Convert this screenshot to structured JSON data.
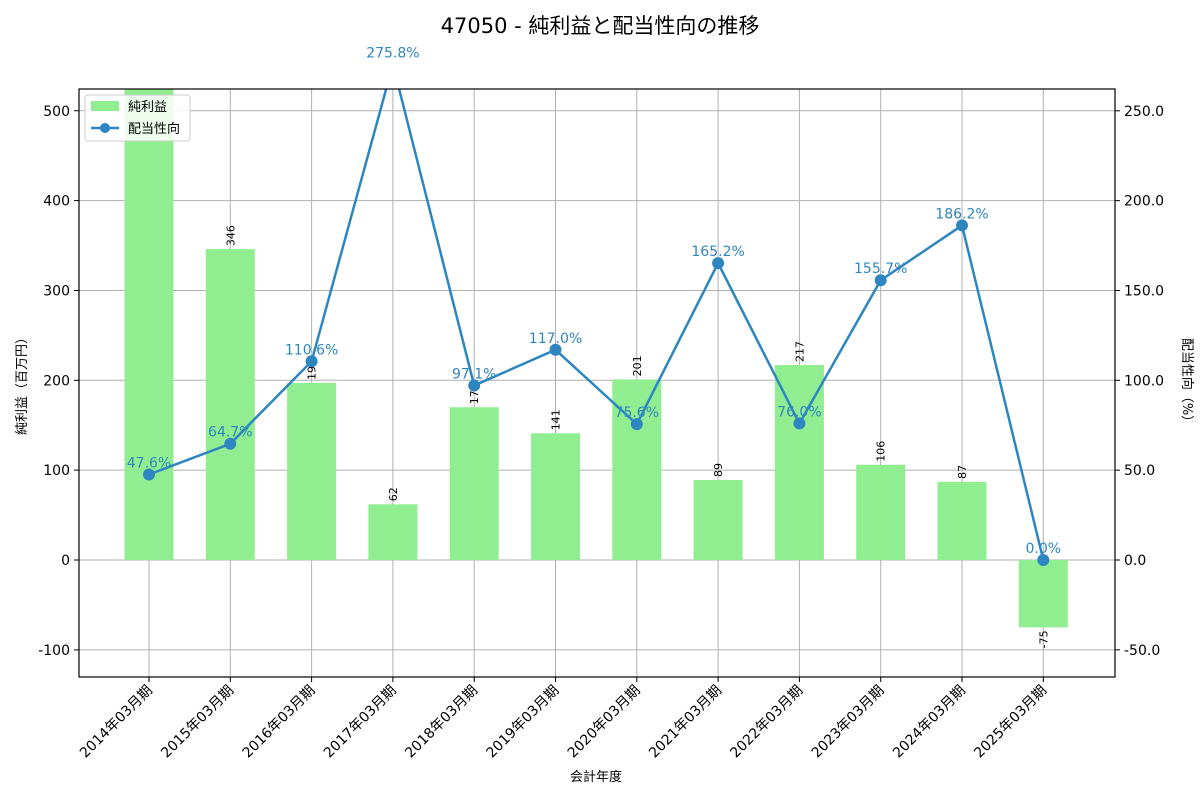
{
  "chart_data": {
    "type": "bar+line",
    "title": "47050 - 純利益と配当性向の推移",
    "xlabel": "会計年度",
    "ylabel_left": "純利益（百万円）",
    "ylabel_right": "配当性向（%）",
    "categories": [
      "2014年03月期",
      "2015年03月期",
      "2016年03月期",
      "2017年03月期",
      "2018年03月期",
      "2019年03月期",
      "2020年03月期",
      "2021年03月期",
      "2022年03月期",
      "2023年03月期",
      "2024年03月期",
      "2025年03月期"
    ],
    "series": [
      {
        "name": "純利益",
        "type": "bar",
        "axis": "left",
        "color": "#90ee90",
        "values": [
          560,
          346,
          197,
          62,
          170,
          141,
          201,
          89,
          217,
          106,
          87,
          -75
        ],
        "labels": [
          "",
          "346",
          "197",
          "62",
          "170",
          "141",
          "201",
          "89",
          "217",
          "106",
          "87",
          "-75"
        ]
      },
      {
        "name": "配当性向",
        "type": "line",
        "axis": "right",
        "color": "#2e86c1",
        "values": [
          47.6,
          64.7,
          110.6,
          275.8,
          97.1,
          117.0,
          75.6,
          165.2,
          76.0,
          155.7,
          186.2,
          0.0
        ],
        "labels": [
          "47.6%",
          "64.7%",
          "110.6%",
          "275.8%",
          "97.1%",
          "117.0%",
          "75.6%",
          "165.2%",
          "76.0%",
          "155.7%",
          "186.2%",
          "0.0%"
        ]
      }
    ],
    "ylim_left": [
      -130,
      525
    ],
    "ylim_right": [
      -65,
      262.5
    ],
    "yticks_left": [
      "-100",
      "0",
      "100",
      "200",
      "300",
      "400",
      "500"
    ],
    "yticks_left_values": [
      -100,
      0,
      100,
      200,
      300,
      400,
      500
    ],
    "yticks_right": [
      "-50.0",
      "0.0",
      "50.0",
      "100.0",
      "150.0",
      "200.0",
      "250.0"
    ],
    "yticks_right_values": [
      -50,
      0,
      50,
      100,
      150,
      200,
      250
    ],
    "grid": true,
    "legend_position": "upper left"
  }
}
